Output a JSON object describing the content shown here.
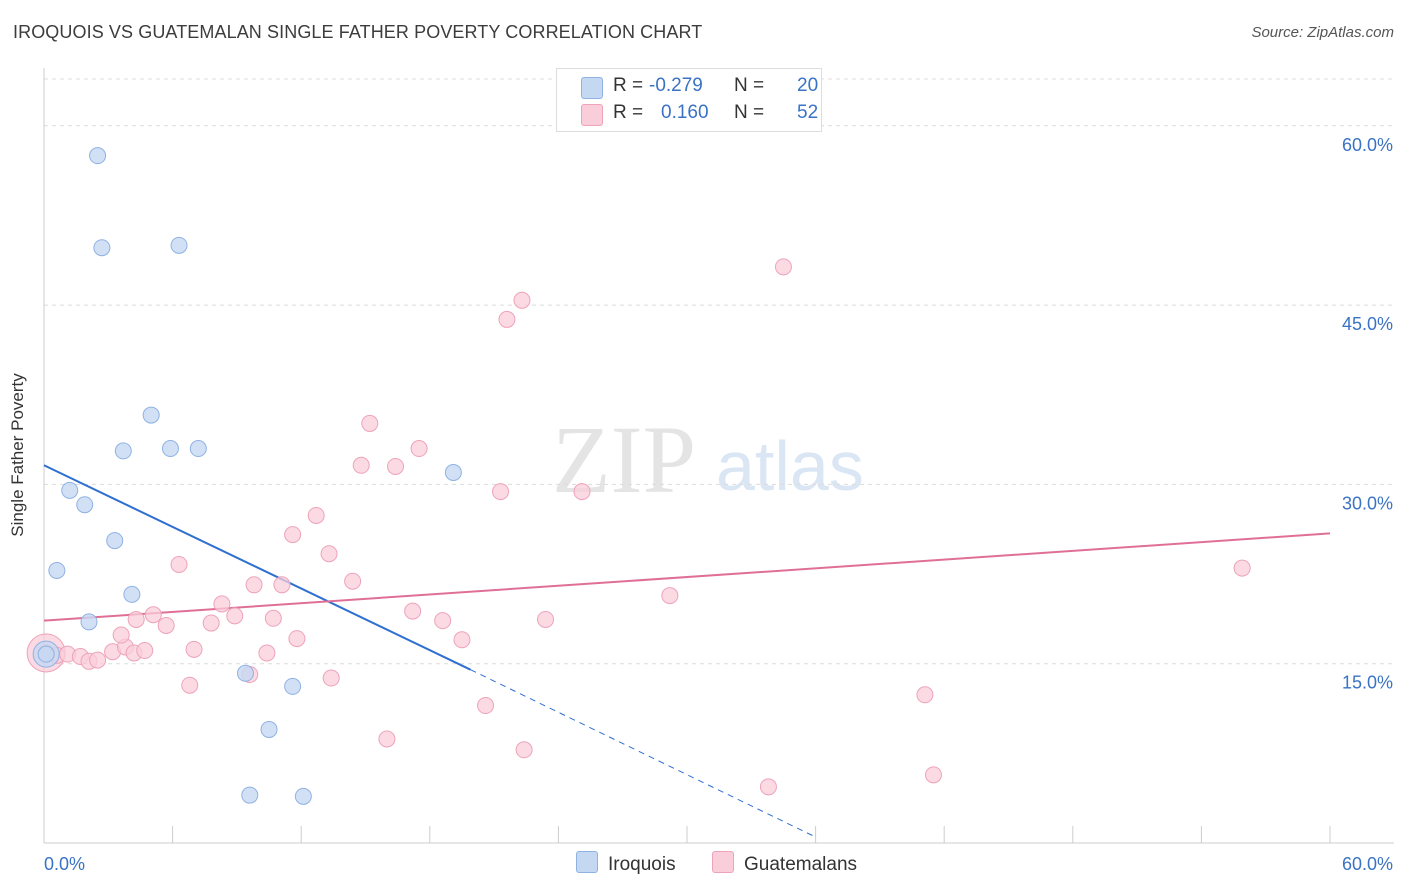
{
  "title": "IROQUOIS VS GUATEMALAN SINGLE FATHER POVERTY CORRELATION CHART",
  "source": "Source: ZipAtlas.com",
  "watermark": {
    "zip": "ZIP",
    "atlas": "atlas"
  },
  "colors": {
    "iroquois_fill": "#c5d8f2",
    "iroquois_stroke": "#8fb2e3",
    "iroquois_line": "#2e6fd0",
    "guatemalan_fill": "#f9cdda",
    "guatemalan_stroke": "#eea3bb",
    "guatemalan_line": "#e06f98",
    "tick_label": "#3a73c4"
  },
  "legend": {
    "rows": [
      {
        "r_label": "R =",
        "r_value": "-0.279",
        "n_label": "N =",
        "n_value": "20"
      },
      {
        "r_label": "R =",
        "r_value": "0.160",
        "n_label": "N =",
        "n_value": "52"
      }
    ]
  },
  "bottom_legend": {
    "iroquois": "Iroquois",
    "guatemalans": "Guatemalans"
  },
  "chart_data": {
    "type": "scatter",
    "title": "IROQUOIS VS GUATEMALAN SINGLE FATHER POVERTY CORRELATION CHART",
    "xlabel": "",
    "ylabel": "Single Father Poverty",
    "xlim": [
      0,
      60
    ],
    "ylim": [
      0,
      64.5
    ],
    "x_tick_labels": [
      "0.0%",
      "60.0%"
    ],
    "y_ticks": [
      15,
      30,
      45,
      60
    ],
    "y_tick_labels": [
      "15.0%",
      "30.0%",
      "45.0%",
      "60.0%"
    ],
    "grid": true,
    "series": [
      {
        "name": "Iroquois",
        "points": [
          [
            0.1,
            15.8
          ],
          [
            2.5,
            57.5
          ],
          [
            2.7,
            49.8
          ],
          [
            6.3,
            50.0
          ],
          [
            5.0,
            35.8
          ],
          [
            3.7,
            32.8
          ],
          [
            5.9,
            33.0
          ],
          [
            7.2,
            33.0
          ],
          [
            19.1,
            31.0
          ],
          [
            1.2,
            29.5
          ],
          [
            1.9,
            28.3
          ],
          [
            3.3,
            25.3
          ],
          [
            0.6,
            22.8
          ],
          [
            4.1,
            20.8
          ],
          [
            2.1,
            18.5
          ],
          [
            9.4,
            14.2
          ],
          [
            11.6,
            13.1
          ],
          [
            10.5,
            9.5
          ],
          [
            9.6,
            4.0
          ],
          [
            12.1,
            3.9
          ]
        ],
        "trend": {
          "x_start": 0,
          "y_start": 31.6,
          "x_end": 19.9,
          "y_end": 14.5,
          "dashed_x_end": 36.0,
          "dashed_y_end": 0.5
        }
      },
      {
        "name": "Guatemalans",
        "points": [
          [
            0.1,
            15.9
          ],
          [
            0.6,
            15.7
          ],
          [
            1.1,
            15.8
          ],
          [
            1.7,
            15.6
          ],
          [
            2.1,
            15.2
          ],
          [
            2.5,
            15.3
          ],
          [
            3.2,
            16.0
          ],
          [
            3.8,
            16.4
          ],
          [
            4.2,
            15.9
          ],
          [
            4.7,
            16.1
          ],
          [
            3.6,
            17.4
          ],
          [
            4.3,
            18.7
          ],
          [
            5.1,
            19.1
          ],
          [
            5.7,
            18.2
          ],
          [
            6.3,
            23.3
          ],
          [
            7.0,
            16.2
          ],
          [
            7.8,
            18.4
          ],
          [
            8.3,
            20.0
          ],
          [
            8.9,
            19.0
          ],
          [
            9.6,
            14.1
          ],
          [
            9.8,
            21.6
          ],
          [
            10.4,
            15.9
          ],
          [
            10.7,
            18.8
          ],
          [
            11.1,
            21.6
          ],
          [
            11.6,
            25.8
          ],
          [
            11.8,
            17.1
          ],
          [
            12.7,
            27.4
          ],
          [
            13.3,
            24.2
          ],
          [
            13.4,
            13.8
          ],
          [
            14.4,
            21.9
          ],
          [
            14.8,
            31.6
          ],
          [
            15.2,
            35.1
          ],
          [
            16.0,
            8.7
          ],
          [
            16.4,
            31.5
          ],
          [
            17.2,
            19.4
          ],
          [
            17.5,
            33.0
          ],
          [
            18.6,
            18.6
          ],
          [
            19.5,
            17.0
          ],
          [
            20.6,
            11.5
          ],
          [
            21.3,
            29.4
          ],
          [
            21.6,
            43.8
          ],
          [
            22.3,
            45.4
          ],
          [
            22.4,
            7.8
          ],
          [
            23.4,
            18.7
          ],
          [
            25.1,
            29.4
          ],
          [
            29.2,
            20.7
          ],
          [
            33.8,
            4.7
          ],
          [
            34.5,
            48.2
          ],
          [
            41.1,
            12.4
          ],
          [
            41.5,
            5.7
          ],
          [
            55.9,
            23.0
          ],
          [
            6.8,
            13.2
          ]
        ],
        "trend": {
          "x_start": 0,
          "y_start": 18.6,
          "x_end": 60,
          "y_end": 25.9
        }
      }
    ]
  }
}
